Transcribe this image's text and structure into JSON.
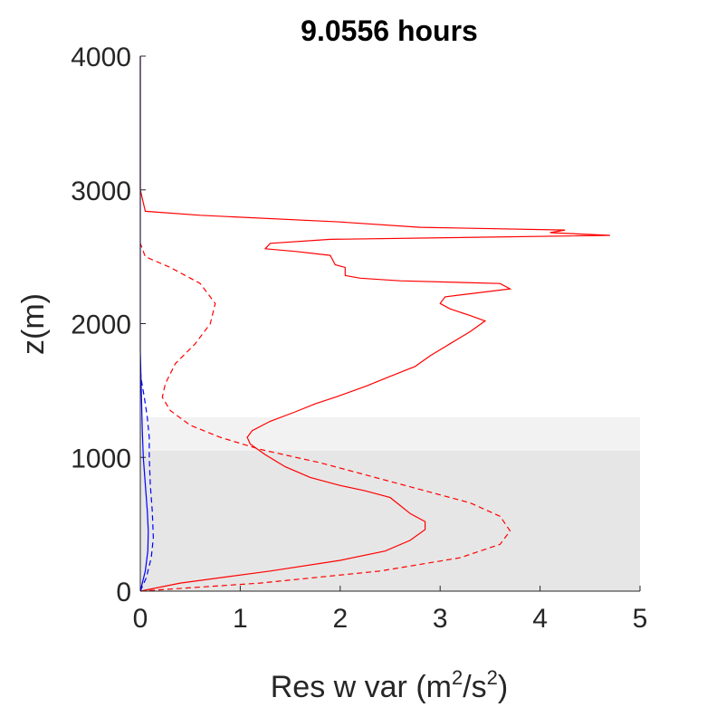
{
  "chart_data": {
    "type": "line",
    "title": "9.0556 hours",
    "xlabel": {
      "prefix": "Res w var (m",
      "sup1": "2",
      "mid": "/s",
      "sup2": "2",
      "suffix": ")"
    },
    "ylabel": "z(m)",
    "xlim": [
      0,
      5
    ],
    "ylim": [
      0,
      4000
    ],
    "xticks": [
      "0",
      "1",
      "2",
      "3",
      "4",
      "5"
    ],
    "yticks": [
      "0",
      "1000",
      "2000",
      "3000",
      "4000"
    ],
    "grid": false,
    "bands": [
      {
        "y0": 0,
        "y1": 1050,
        "color": "#e6e6e6"
      },
      {
        "y0": 1050,
        "y1": 1300,
        "color": "#f2f2f2"
      }
    ],
    "series": [
      {
        "color": "#ff0000",
        "dash": "solid",
        "points": [
          [
            0,
            0
          ],
          [
            0.4,
            60
          ],
          [
            1.3,
            150
          ],
          [
            2.0,
            230
          ],
          [
            2.45,
            300
          ],
          [
            2.7,
            380
          ],
          [
            2.85,
            460
          ],
          [
            2.85,
            520
          ],
          [
            2.7,
            580
          ],
          [
            2.6,
            640
          ],
          [
            2.5,
            700
          ],
          [
            2.25,
            750
          ],
          [
            2.0,
            790
          ],
          [
            1.7,
            850
          ],
          [
            1.45,
            930
          ],
          [
            1.25,
            1020
          ],
          [
            1.1,
            1100
          ],
          [
            1.07,
            1150
          ],
          [
            1.12,
            1200
          ],
          [
            1.3,
            1270
          ],
          [
            1.55,
            1340
          ],
          [
            1.75,
            1400
          ],
          [
            1.95,
            1450
          ],
          [
            2.25,
            1530
          ],
          [
            2.55,
            1620
          ],
          [
            2.75,
            1680
          ],
          [
            2.9,
            1760
          ],
          [
            3.1,
            1850
          ],
          [
            3.3,
            1940
          ],
          [
            3.45,
            2020
          ],
          [
            3.3,
            2060
          ],
          [
            3.1,
            2110
          ],
          [
            3.0,
            2150
          ],
          [
            3.05,
            2200
          ],
          [
            3.7,
            2260
          ],
          [
            3.6,
            2300
          ],
          [
            2.6,
            2320
          ],
          [
            2.2,
            2340
          ],
          [
            2.05,
            2360
          ],
          [
            2.05,
            2420
          ],
          [
            1.95,
            2440
          ],
          [
            1.9,
            2510
          ],
          [
            1.55,
            2540
          ],
          [
            1.25,
            2560
          ],
          [
            1.3,
            2600
          ],
          [
            1.9,
            2630
          ],
          [
            4.7,
            2660
          ],
          [
            4.1,
            2680
          ],
          [
            4.25,
            2700
          ],
          [
            2.8,
            2720
          ],
          [
            2.0,
            2760
          ],
          [
            0.6,
            2810
          ],
          [
            0.05,
            2840
          ],
          [
            0,
            3000
          ],
          [
            0,
            4000
          ]
        ]
      },
      {
        "color": "#ff0000",
        "dash": "dashed",
        "points": [
          [
            0,
            0
          ],
          [
            1.2,
            60
          ],
          [
            2.4,
            150
          ],
          [
            3.2,
            250
          ],
          [
            3.6,
            350
          ],
          [
            3.7,
            450
          ],
          [
            3.6,
            560
          ],
          [
            3.3,
            660
          ],
          [
            2.8,
            760
          ],
          [
            2.3,
            860
          ],
          [
            1.8,
            960
          ],
          [
            1.2,
            1060
          ],
          [
            0.8,
            1150
          ],
          [
            0.5,
            1240
          ],
          [
            0.3,
            1350
          ],
          [
            0.22,
            1450
          ],
          [
            0.25,
            1550
          ],
          [
            0.35,
            1700
          ],
          [
            0.55,
            1850
          ],
          [
            0.7,
            2000
          ],
          [
            0.75,
            2150
          ],
          [
            0.6,
            2300
          ],
          [
            0.3,
            2420
          ],
          [
            0.05,
            2500
          ],
          [
            0,
            2600
          ]
        ]
      },
      {
        "color": "#0000ff",
        "dash": "solid",
        "points": [
          [
            0,
            0
          ],
          [
            0.05,
            150
          ],
          [
            0.075,
            300
          ],
          [
            0.08,
            450
          ],
          [
            0.07,
            600
          ],
          [
            0.05,
            800
          ],
          [
            0.03,
            1000
          ],
          [
            0.02,
            1200
          ],
          [
            0.01,
            1500
          ],
          [
            0,
            1800
          ],
          [
            0,
            4000
          ]
        ]
      },
      {
        "color": "#0000ff",
        "dash": "dashed",
        "points": [
          [
            0,
            0
          ],
          [
            0.06,
            100
          ],
          [
            0.11,
            250
          ],
          [
            0.13,
            400
          ],
          [
            0.12,
            600
          ],
          [
            0.1,
            800
          ],
          [
            0.09,
            1000
          ],
          [
            0.09,
            1150
          ],
          [
            0.07,
            1300
          ],
          [
            0.04,
            1450
          ],
          [
            0.01,
            1580
          ],
          [
            0,
            1650
          ]
        ]
      }
    ]
  }
}
